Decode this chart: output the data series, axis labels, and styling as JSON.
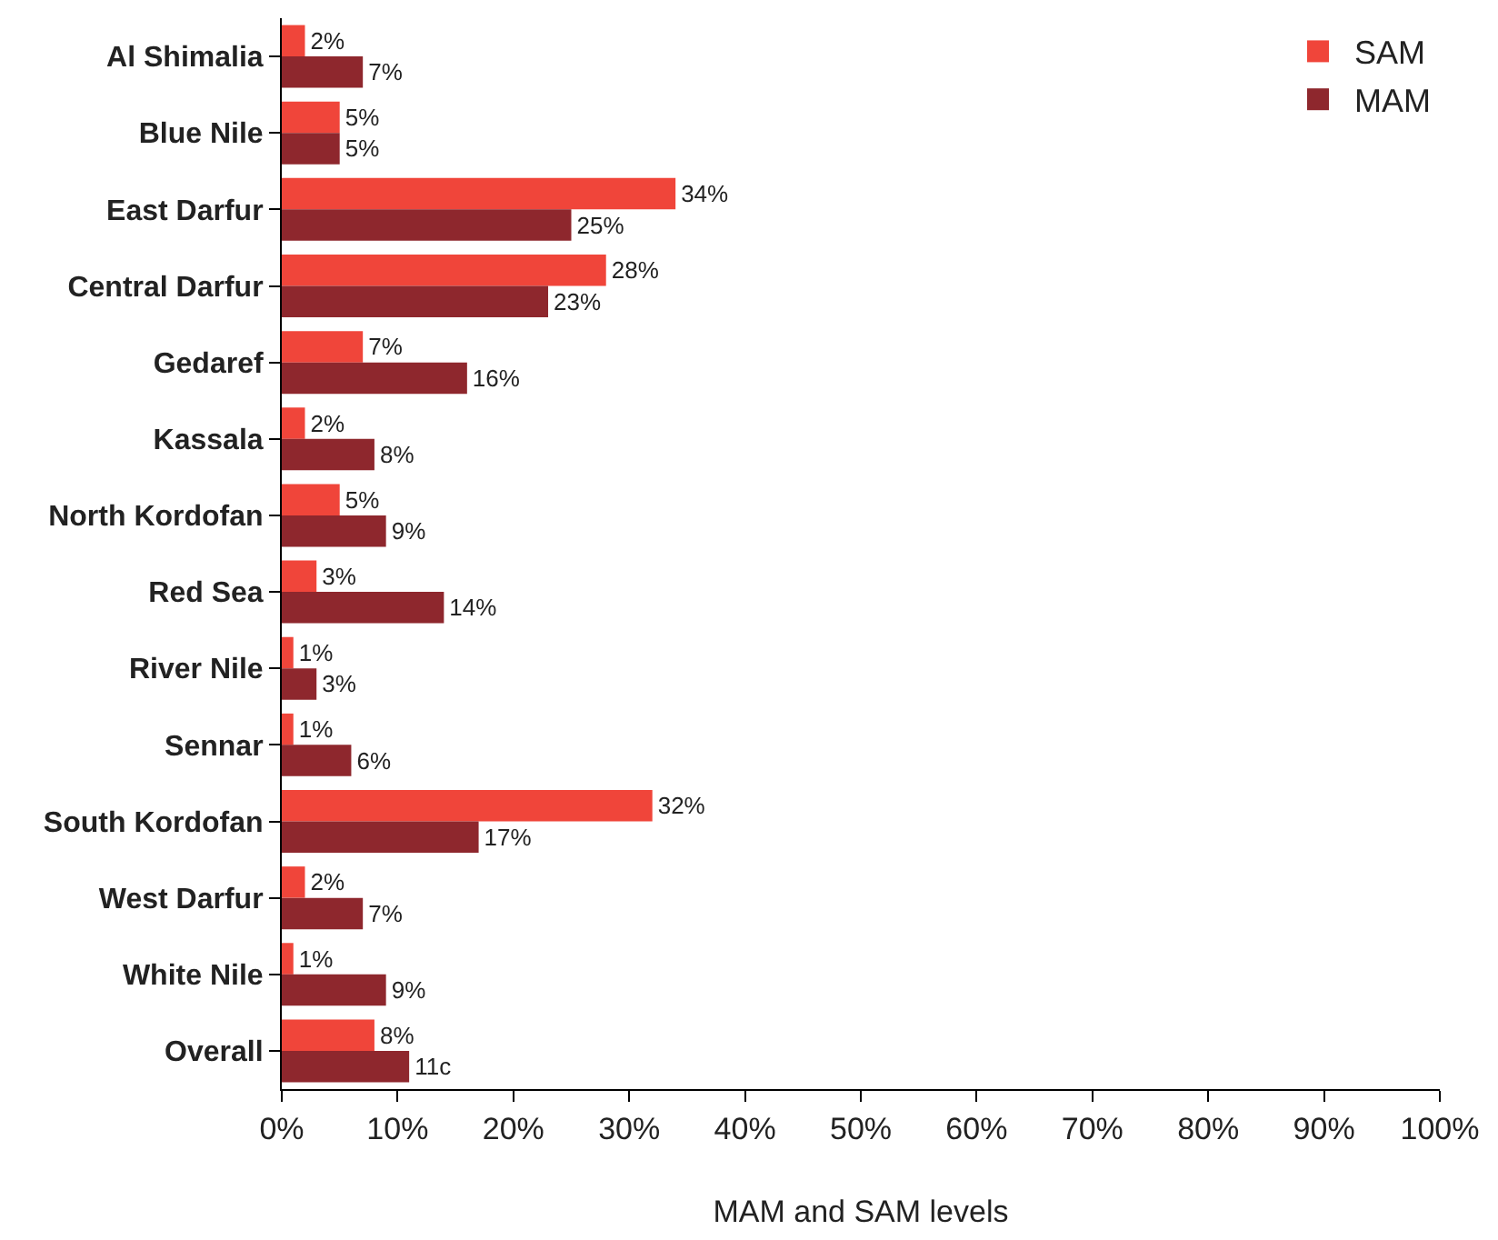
{
  "chart_data": {
    "type": "bar",
    "orientation": "horizontal",
    "xlabel": "MAM and SAM levels",
    "categories": [
      "Al Shimalia",
      "Blue Nile",
      "East Darfur",
      "Central Darfur",
      "Gedaref",
      "Kassala",
      "North Kordofan",
      "Red Sea",
      "River Nile",
      "Sennar",
      "South Kordofan",
      "West Darfur",
      "White Nile",
      "Overall"
    ],
    "series": [
      {
        "name": "SAM",
        "color": "#f0453a",
        "values": [
          2,
          5,
          34,
          28,
          7,
          2,
          5,
          3,
          1,
          1,
          32,
          2,
          1,
          8
        ],
        "value_labels": [
          "2%",
          "5%",
          "34%",
          "28%",
          "7%",
          "2%",
          "5%",
          "3%",
          "1%",
          "1%",
          "32%",
          "2%",
          "1%",
          "8%"
        ]
      },
      {
        "name": "MAM",
        "color": "#8e272d",
        "values": [
          7,
          5,
          25,
          23,
          16,
          8,
          9,
          14,
          3,
          6,
          17,
          7,
          9,
          11
        ],
        "value_labels": [
          "7%",
          "5%",
          "25%",
          "23%",
          "16%",
          "8%",
          "9%",
          "14%",
          "3%",
          "6%",
          "17%",
          "7%",
          "9%",
          "11c"
        ]
      }
    ],
    "xlim": [
      0,
      100
    ],
    "xticks": [
      {
        "value": 0,
        "label": "0%"
      },
      {
        "value": 10,
        "label": "10%"
      },
      {
        "value": 20,
        "label": "20%"
      },
      {
        "value": 30,
        "label": "30%"
      },
      {
        "value": 40,
        "label": "40%"
      },
      {
        "value": 50,
        "label": "50%"
      },
      {
        "value": 60,
        "label": "60%"
      },
      {
        "value": 70,
        "label": "70%"
      },
      {
        "value": 80,
        "label": "80%"
      },
      {
        "value": 90,
        "label": "90%"
      },
      {
        "value": 100,
        "label": "100%"
      }
    ],
    "grid": false,
    "legend": "top right"
  }
}
